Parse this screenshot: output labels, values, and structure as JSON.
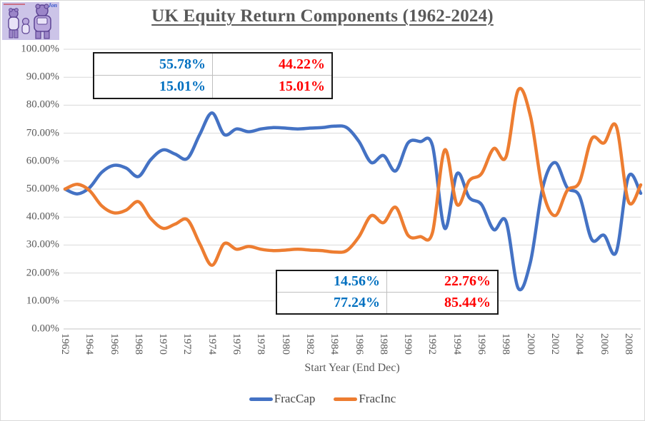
{
  "title": "UK Equity Return Components (1962-2024)",
  "logo": {
    "watermark": "Jon",
    "description": "cartoon-bears-drawing"
  },
  "colors": {
    "frac_cap": "#4472C4",
    "frac_inc": "#ED7D31",
    "stat_blue": "#0070C0",
    "stat_red": "#FF0000",
    "gridline": "#D9D9D9",
    "axis_line": "#C6C6C6",
    "axis_text": "#595959",
    "title_text": "#595959"
  },
  "stats_boxes": {
    "upper": {
      "rows": [
        [
          "55.78%",
          "44.22%"
        ],
        [
          "15.01%",
          "15.01%"
        ]
      ]
    },
    "lower": {
      "rows": [
        [
          "14.56%",
          "22.76%"
        ],
        [
          "77.24%",
          "85.44%"
        ]
      ]
    }
  },
  "x_axis": {
    "title": "Start Year (End Dec)",
    "tick_labels": [
      "1962",
      "1964",
      "1966",
      "1968",
      "1970",
      "1972",
      "1974",
      "1976",
      "1978",
      "1980",
      "1982",
      "1984",
      "1986",
      "1988",
      "1990",
      "1992",
      "1994",
      "1996",
      "1998",
      "2000",
      "2002",
      "2004",
      "2006",
      "2008"
    ]
  },
  "y_axis": {
    "tick_labels": [
      "100.00%",
      "90.00%",
      "80.00%",
      "70.00%",
      "60.00%",
      "50.00%",
      "40.00%",
      "30.00%",
      "20.00%",
      "10.00%",
      "0.00%"
    ]
  },
  "legend": [
    {
      "label": "FracCap",
      "color": "#4472C4"
    },
    {
      "label": "FracInc",
      "color": "#ED7D31"
    }
  ],
  "chart_data": {
    "type": "line",
    "title": "UK Equity Return Components (1962-2024)",
    "xlabel": "Start Year (End Dec)",
    "ylabel": "",
    "ylim": [
      0,
      100
    ],
    "y_tick_step": 10,
    "grid": true,
    "smoothed": true,
    "legend_position": "bottom",
    "x": [
      1962,
      1963,
      1964,
      1965,
      1966,
      1967,
      1968,
      1969,
      1970,
      1971,
      1972,
      1973,
      1974,
      1975,
      1976,
      1977,
      1978,
      1979,
      1980,
      1981,
      1982,
      1983,
      1984,
      1985,
      1986,
      1987,
      1988,
      1989,
      1990,
      1991,
      1992,
      1993,
      1994,
      1995,
      1996,
      1997,
      1998,
      1999,
      2000,
      2001,
      2002,
      2003,
      2004,
      2005,
      2006,
      2007,
      2008,
      2009
    ],
    "series": [
      {
        "name": "FracCap",
        "color": "#4472C4",
        "values": [
          50.0,
          48.3,
          50.5,
          56.0,
          58.5,
          57.5,
          54.5,
          60.5,
          64.0,
          62.5,
          61.0,
          69.5,
          77.24,
          69.5,
          71.5,
          70.5,
          71.5,
          72.0,
          71.8,
          71.5,
          71.8,
          72.0,
          72.5,
          72.0,
          67.0,
          59.5,
          62.0,
          56.5,
          66.5,
          67.0,
          65.5,
          36.0,
          55.5,
          47.0,
          44.5,
          35.5,
          38.5,
          14.56,
          24.0,
          50.5,
          59.5,
          50.5,
          47.5,
          32.0,
          33.5,
          27.5,
          54.5,
          48.5
        ]
      },
      {
        "name": "FracInc",
        "color": "#ED7D31",
        "values": [
          50.0,
          51.7,
          49.5,
          44.0,
          41.5,
          42.5,
          45.5,
          39.5,
          36.0,
          37.5,
          39.0,
          30.5,
          22.76,
          30.5,
          28.5,
          29.5,
          28.5,
          28.0,
          28.2,
          28.5,
          28.2,
          28.0,
          27.5,
          28.0,
          33.0,
          40.5,
          38.0,
          43.5,
          33.5,
          33.0,
          34.5,
          64.0,
          44.5,
          53.0,
          55.5,
          64.5,
          61.5,
          85.44,
          76.0,
          49.5,
          40.5,
          49.5,
          52.5,
          68.0,
          66.5,
          72.5,
          45.5,
          51.5
        ]
      }
    ]
  }
}
